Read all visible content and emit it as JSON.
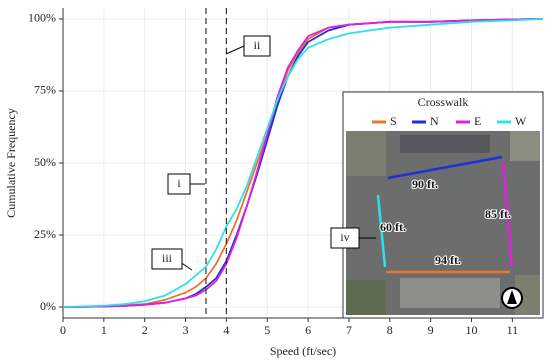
{
  "chart_data": {
    "type": "line",
    "x_label": "Speed (ft/sec)",
    "y_label": "Cumulative Frequency",
    "x": [
      0,
      1,
      1.5,
      2,
      2.5,
      3,
      3.25,
      3.5,
      3.75,
      4,
      4.25,
      4.5,
      4.75,
      5,
      5.25,
      5.5,
      5.75,
      6,
      6.5,
      7,
      8,
      9,
      10,
      11,
      11.75
    ],
    "series": [
      {
        "name": "S",
        "color": "#e8752a",
        "values": [
          0,
          0.3,
          0.6,
          1,
          2.5,
          5,
          7,
          10,
          15,
          22,
          30,
          40,
          50,
          60,
          72,
          82,
          88,
          93,
          97,
          98,
          99,
          99,
          99.5,
          99.8,
          100
        ]
      },
      {
        "name": "N",
        "color": "#1f2fd6",
        "values": [
          0,
          0.2,
          0.4,
          0.8,
          1.5,
          3,
          4.5,
          7,
          10,
          16,
          25,
          35,
          46,
          58,
          70,
          80,
          87,
          92,
          96,
          98,
          99,
          99,
          99.5,
          99.8,
          100
        ]
      },
      {
        "name": "E",
        "color": "#e020e0",
        "values": [
          0,
          0.2,
          0.4,
          0.8,
          1.5,
          3,
          4,
          6,
          9,
          15,
          24,
          35,
          47,
          60,
          73,
          83,
          89,
          94,
          97,
          98,
          99,
          99,
          99.5,
          99.8,
          100
        ]
      },
      {
        "name": "W",
        "color": "#2fe0ea",
        "values": [
          0,
          0.5,
          1,
          2,
          4,
          8,
          11,
          14,
          20,
          28,
          34,
          42,
          52,
          62,
          72,
          80,
          86,
          90,
          93,
          95,
          97,
          98,
          99,
          99.5,
          100
        ]
      }
    ],
    "xlim": [
      0,
      11.75
    ],
    "xticks": [
      0,
      1,
      2,
      3,
      4,
      5,
      6,
      7,
      8,
      9,
      10,
      11
    ],
    "ylim": [
      -3.8,
      103.8
    ],
    "yticks": [
      {
        "value": 0,
        "label": "0%"
      },
      {
        "value": 25,
        "label": "25%"
      },
      {
        "value": 50,
        "label": "50%"
      },
      {
        "value": 75,
        "label": "75%"
      },
      {
        "value": 100,
        "label": "100%"
      }
    ],
    "grid": true,
    "vlines": [
      3.5,
      4
    ],
    "annotations": [
      "i",
      "ii",
      "iii",
      "iv"
    ],
    "legend_title": "Crosswalk",
    "inset_labels": [
      "90 ft.",
      "85 ft.",
      "60 ft.",
      "94 ft."
    ]
  }
}
